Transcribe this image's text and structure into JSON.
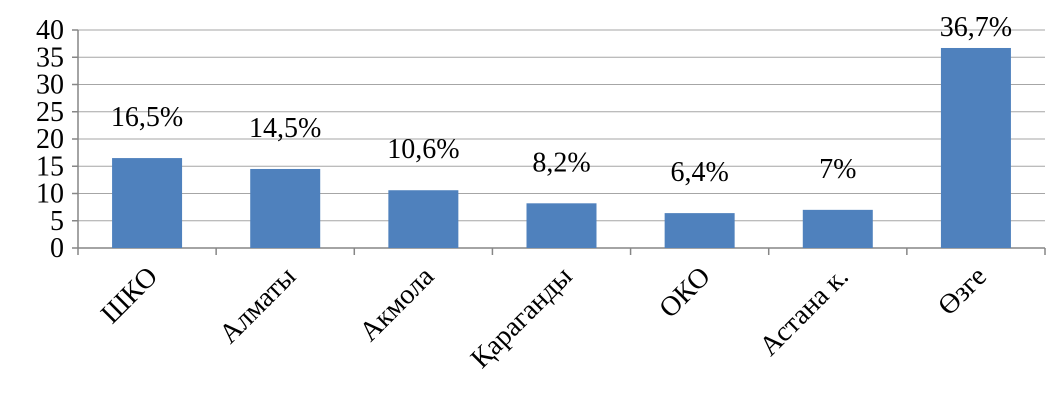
{
  "chart_data": {
    "type": "bar",
    "categories": [
      "ШКО",
      "Алматы",
      "Акмола",
      "Қараганды",
      "ОКО",
      "Астана к.",
      "Өзге"
    ],
    "values": [
      16.5,
      14.5,
      10.6,
      8.2,
      6.4,
      7,
      36.7
    ],
    "value_labels": [
      "16,5%",
      "14,5%",
      "10,6%",
      "8,2%",
      "6,4%",
      "7%",
      "36,7%"
    ],
    "color": "#4f81bd",
    "ylim": [
      0,
      40
    ],
    "yticks": [
      0,
      5,
      10,
      15,
      20,
      25,
      30,
      35,
      40
    ],
    "grid": true
  }
}
